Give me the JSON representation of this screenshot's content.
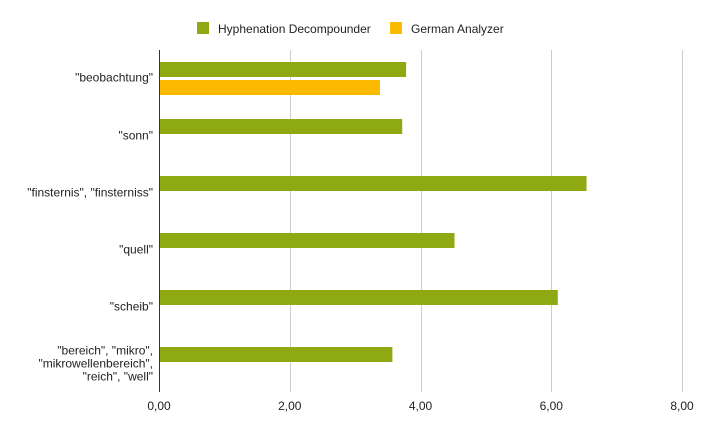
{
  "chart_data": {
    "type": "bar",
    "orientation": "horizontal",
    "title": "",
    "xlabel": "",
    "ylabel": "",
    "xlim": [
      0,
      8
    ],
    "x_ticks": [
      "0,00",
      "2,00",
      "4,00",
      "6,00",
      "8,00"
    ],
    "x_tick_values": [
      0,
      2,
      4,
      6,
      8
    ],
    "grid": true,
    "legend_position": "top-center",
    "categories": [
      [
        "\"beobachtung\""
      ],
      [
        "\"sonn\""
      ],
      [
        "\"finsternis\", \"finsterniss\""
      ],
      [
        "\"quell\""
      ],
      [
        "\"scheib\""
      ],
      [
        "\"bereich\", \"mikro\",",
        "\"mikrowellenbereich\",",
        "\"reich\", \"well\""
      ]
    ],
    "series": [
      {
        "name": "Hyphenation Decompounder",
        "color": "#8fa913",
        "values": [
          3.78,
          3.72,
          6.54,
          4.52,
          6.1,
          3.57
        ]
      },
      {
        "name": "German Analyzer",
        "color": "#fbb900",
        "values": [
          3.38,
          null,
          null,
          null,
          null,
          null
        ]
      }
    ]
  }
}
